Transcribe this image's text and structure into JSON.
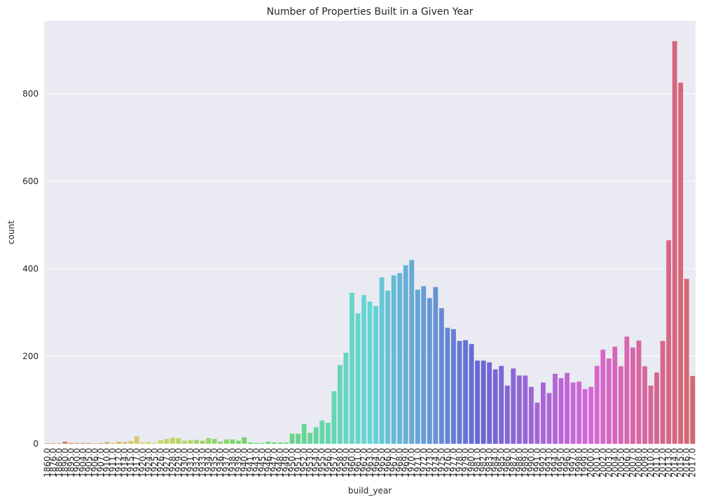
{
  "chart_data": {
    "type": "bar",
    "title": "Number of Properties Built in a Given Year",
    "xlabel": "build_year",
    "ylabel": "count",
    "categories": [
      "1860.0",
      "1876.0",
      "1886.0",
      "1890.0",
      "1895.0",
      "1900.0",
      "1904.0",
      "1905.0",
      "1906.0",
      "1907.0",
      "1910.0",
      "1911.0",
      "1912.0",
      "1914.0",
      "1915.0",
      "1917.0",
      "1920.0",
      "1924.0",
      "1925.0",
      "1926.0",
      "1927.0",
      "1928.0",
      "1929.0",
      "1930.0",
      "1931.0",
      "1932.0",
      "1933.0",
      "1934.0",
      "1935.0",
      "1936.0",
      "1937.0",
      "1938.0",
      "1939.0",
      "1940.0",
      "1941.0",
      "1943.0",
      "1945.0",
      "1946.0",
      "1947.0",
      "1948.0",
      "1949.0",
      "1950.0",
      "1951.0",
      "1952.0",
      "1953.0",
      "1954.0",
      "1955.0",
      "1956.0",
      "1957.0",
      "1958.0",
      "1959.0",
      "1960.0",
      "1961.0",
      "1962.0",
      "1963.0",
      "1964.0",
      "1965.0",
      "1966.0",
      "1967.0",
      "1968.0",
      "1969.0",
      "1970.0",
      "1971.0",
      "1972.0",
      "1973.0",
      "1974.0",
      "1975.0",
      "1976.0",
      "1977.0",
      "1978.0",
      "1979.0",
      "1980.0",
      "1981.0",
      "1982.0",
      "1983.0",
      "1984.0",
      "1985.0",
      "1986.0",
      "1987.0",
      "1988.0",
      "1989.0",
      "1990.0",
      "1991.0",
      "1992.0",
      "1993.0",
      "1994.0",
      "1995.0",
      "1996.0",
      "1997.0",
      "1998.0",
      "1999.0",
      "2000.0",
      "2001.0",
      "2002.0",
      "2003.0",
      "2004.0",
      "2005.0",
      "2006.0",
      "2007.0",
      "2008.0",
      "2009.0",
      "2010.0",
      "2011.0",
      "2012.0",
      "2013.0",
      "2014.0",
      "2015.0",
      "2016.0",
      "2017.0"
    ],
    "values": [
      1,
      1,
      1,
      5,
      2,
      2,
      2,
      2,
      1,
      2,
      4,
      2,
      5,
      4,
      6,
      17,
      3,
      4,
      2,
      8,
      11,
      14,
      13,
      7,
      8,
      9,
      7,
      13,
      11,
      5,
      10,
      10,
      7,
      15,
      3,
      2,
      2,
      5,
      3,
      3,
      3,
      23,
      23,
      45,
      25,
      38,
      53,
      48,
      120,
      180,
      208,
      345,
      298,
      340,
      325,
      315,
      380,
      350,
      385,
      390,
      408,
      420,
      352,
      360,
      333,
      358,
      310,
      265,
      262,
      235,
      237,
      228,
      190,
      190,
      186,
      170,
      178,
      133,
      172,
      156,
      156,
      130,
      94,
      140,
      116,
      160,
      150,
      162,
      140,
      142,
      125,
      130,
      178,
      215,
      195,
      222,
      177,
      245,
      220,
      236,
      177,
      133,
      163,
      235,
      465,
      920,
      825,
      377,
      155
    ],
    "palette": "husl",
    "ylim": [
      0,
      966
    ],
    "yticks": [
      0,
      200,
      400,
      600,
      800
    ],
    "grid": true
  }
}
